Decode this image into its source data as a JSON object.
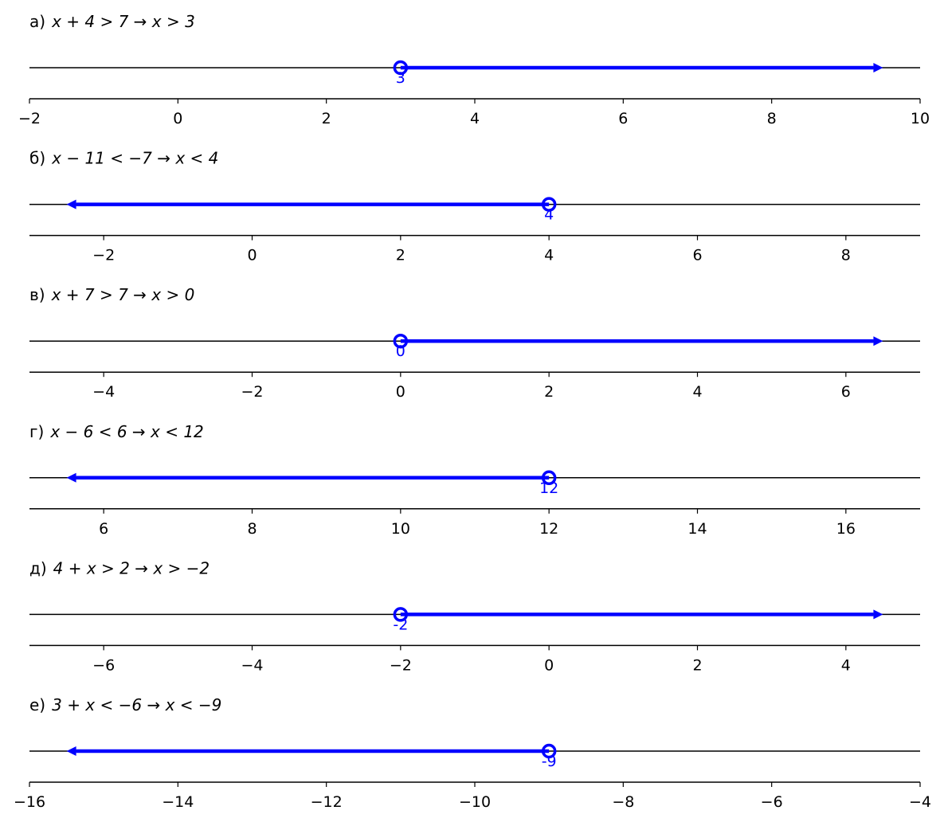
{
  "colors": {
    "accent": "#0000ff",
    "axis": "#000000",
    "background": "#ffffff"
  },
  "chart_data": [
    {
      "type": "number_line",
      "label_prefix": "а)",
      "label_math": "x + 4 > 7  →  x > 3",
      "inequality": "x > 3",
      "boundary": 3,
      "boundary_label": "3",
      "direction": "right",
      "open": true,
      "xlim": [
        -2,
        10
      ],
      "xticks": [
        -2,
        0,
        2,
        4,
        6,
        8,
        10
      ],
      "tick_labels": [
        "−2",
        "0",
        "2",
        "4",
        "6",
        "8",
        "10"
      ],
      "arrow_end": 9.5
    },
    {
      "type": "number_line",
      "label_prefix": "б)",
      "label_math": "x − 11 < −7  →  x < 4",
      "inequality": "x < 4",
      "boundary": 4,
      "boundary_label": "4",
      "direction": "left",
      "open": true,
      "xlim": [
        -3,
        9
      ],
      "xticks": [
        -2,
        0,
        2,
        4,
        6,
        8
      ],
      "tick_labels": [
        "−2",
        "0",
        "2",
        "4",
        "6",
        "8"
      ],
      "arrow_end": -2.5
    },
    {
      "type": "number_line",
      "label_prefix": "в)",
      "label_math": "x + 7 > 7  →  x > 0",
      "inequality": "x > 0",
      "boundary": 0,
      "boundary_label": "0",
      "direction": "right",
      "open": true,
      "xlim": [
        -5,
        7
      ],
      "xticks": [
        -4,
        -2,
        0,
        2,
        4,
        6
      ],
      "tick_labels": [
        "−4",
        "−2",
        "0",
        "2",
        "4",
        "6"
      ],
      "arrow_end": 6.5
    },
    {
      "type": "number_line",
      "label_prefix": "г)",
      "label_math": "x − 6 < 6  →  x < 12",
      "inequality": "x < 12",
      "boundary": 12,
      "boundary_label": "12",
      "direction": "left",
      "open": true,
      "xlim": [
        5,
        17
      ],
      "xticks": [
        6,
        8,
        10,
        12,
        14,
        16
      ],
      "tick_labels": [
        "6",
        "8",
        "10",
        "12",
        "14",
        "16"
      ],
      "arrow_end": 5.5
    },
    {
      "type": "number_line",
      "label_prefix": "д)",
      "label_math": "4 + x > 2  →  x > −2",
      "inequality": "x > −2",
      "boundary": -2,
      "boundary_label": "-2",
      "direction": "right",
      "open": true,
      "xlim": [
        -7,
        5
      ],
      "xticks": [
        -6,
        -4,
        -2,
        0,
        2,
        4
      ],
      "tick_labels": [
        "−6",
        "−4",
        "−2",
        "0",
        "2",
        "4"
      ],
      "arrow_end": 4.5
    },
    {
      "type": "number_line",
      "label_prefix": "е)",
      "label_math": "3 + x < −6  →  x < −9",
      "inequality": "x < −9",
      "boundary": -9,
      "boundary_label": "-9",
      "direction": "left",
      "open": true,
      "xlim": [
        -16,
        -4
      ],
      "xticks": [
        -16,
        -14,
        -12,
        -10,
        -8,
        -6,
        -4
      ],
      "tick_labels": [
        "−16",
        "−14",
        "−12",
        "−10",
        "−8",
        "−6",
        "−4"
      ],
      "arrow_end": -15.5
    }
  ]
}
